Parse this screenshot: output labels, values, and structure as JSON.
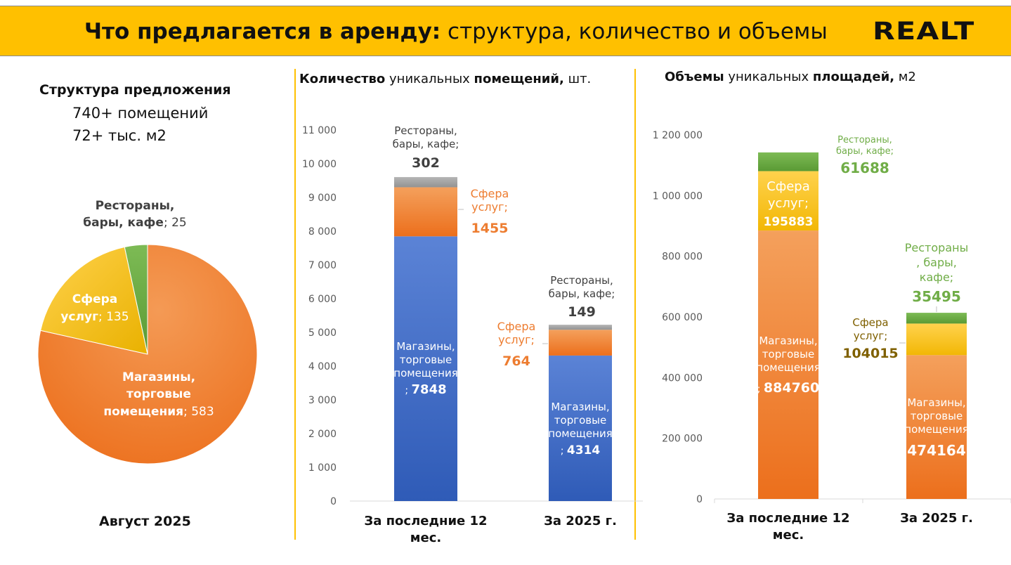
{
  "header": {
    "title_bold": "Что предлагается в аренду:",
    "title_rest": " структура, количество и объемы",
    "logo": "REALT"
  },
  "structure": {
    "title": "Структура предложения",
    "count_line": "740+ помещений",
    "area_line": "72+ тыс. м2",
    "month": "Август 2025"
  },
  "colors": {
    "header_bg": "#ffc000",
    "shops_blue": "#4472c4",
    "shops_orange": "#ed7d31",
    "services": "#ffc000",
    "restaurants_green": "#70ad47",
    "restaurants_gray": "#a5a5a5"
  },
  "chart_data": [
    {
      "type": "pie",
      "categories": [
        "Магазины, торговые помещения",
        "Сфера услуг",
        "Рестораны, бары, кафе"
      ],
      "values": [
        583,
        135,
        25
      ],
      "labels": [
        {
          "bold1": "Магазины,",
          "bold2": "торговые",
          "bold3": "помещения",
          "value": "; 583"
        },
        {
          "bold1": "Сфера",
          "bold2": "услуг",
          "value": "; 135"
        },
        {
          "bold1": "Рестораны,",
          "bold2": "бары, кафе",
          "value": "; 25"
        }
      ]
    },
    {
      "type": "bar",
      "stacked": true,
      "title_bold1": "Количество",
      "title_mid": " уникальных ",
      "title_bold2": "помещений,",
      "title_unit": " шт.",
      "categories": [
        "За последние 12 мес.",
        "За 2025 г."
      ],
      "category_lines": [
        [
          "За последние 12",
          "мес."
        ],
        [
          "За 2025 г."
        ]
      ],
      "ylim": [
        0,
        11000
      ],
      "yticks": [
        "0",
        "1 000",
        "2 000",
        "3 000",
        "4 000",
        "5 000",
        "6 000",
        "7 000",
        "8 000",
        "9 000",
        "10 000",
        "11 000"
      ],
      "series": [
        {
          "name": "Магазины, торговые помещения",
          "values": [
            7848,
            4314
          ],
          "label_lines": [
            "Магазины,",
            "торговые",
            "помещения",
            ";"
          ]
        },
        {
          "name": "Сфера услуг",
          "values": [
            1455,
            764
          ],
          "label_lines": [
            "Сфера",
            "услуг;"
          ]
        },
        {
          "name": "Рестораны, бары, кафе",
          "values": [
            302,
            149
          ],
          "label_lines": [
            "Рестораны,",
            "бары, кафе;"
          ]
        }
      ]
    },
    {
      "type": "bar",
      "stacked": true,
      "title_bold1": "Объемы",
      "title_mid": " уникальных ",
      "title_bold2": "площадей,",
      "title_unit": " м2",
      "categories": [
        "За последние 12 мес.",
        "За 2025 г."
      ],
      "category_lines": [
        [
          "За последние 12",
          "мес."
        ],
        [
          "За 2025 г."
        ]
      ],
      "ylim": [
        0,
        1200000
      ],
      "yticks": [
        "0",
        "200 000",
        "400 000",
        "600 000",
        "800 000",
        "1 000 000",
        "1 200 000"
      ],
      "series": [
        {
          "name": "Магазины, торговые помещения",
          "values": [
            884760,
            474164
          ],
          "label_lines": [
            "Магазины,",
            "торговые",
            "помещения",
            ";"
          ]
        },
        {
          "name": "Сфера услуг",
          "values": [
            195883,
            104015
          ],
          "label_lines_a": [
            "Сфера",
            "услуг;"
          ],
          "label_lines_b": [
            "Сфера",
            "услуг;"
          ]
        },
        {
          "name": "Рестораны, бары, кафе",
          "values": [
            61688,
            35495
          ],
          "label_lines_a": [
            "Рестораны,",
            "бары, кафе;"
          ],
          "label_lines_b": [
            "Рестораны",
            ", бары,",
            "кафе;"
          ]
        }
      ]
    }
  ]
}
